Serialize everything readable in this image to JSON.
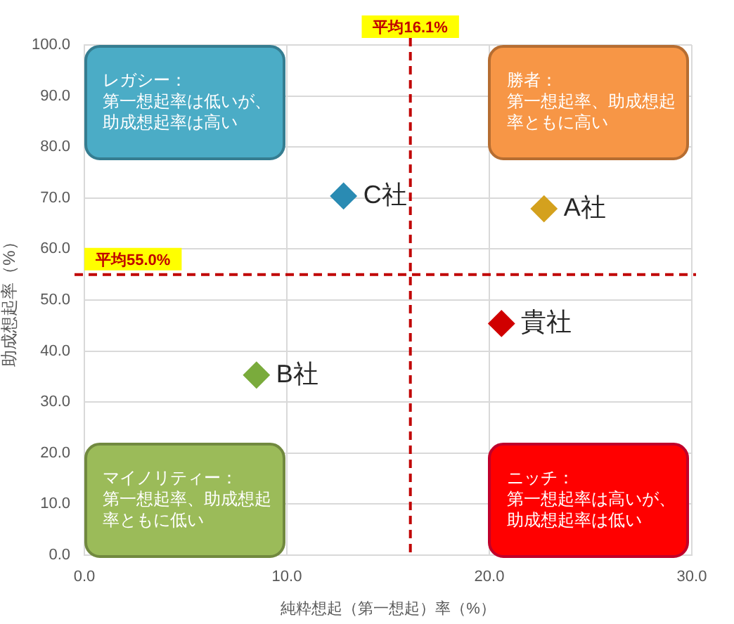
{
  "chart_data": {
    "type": "scatter",
    "xlabel": "純粋想起（第一想起）率（%）",
    "ylabel": "助成想起率（%）",
    "series": [
      {
        "name": "C社",
        "color": "#2a8bb3",
        "x": [
          12.8
        ],
        "values": [
          70.4
        ]
      },
      {
        "name": "A社",
        "color": "#d4a11e",
        "x": [
          22.7
        ],
        "values": [
          67.9
        ]
      },
      {
        "name": "貴社",
        "color": "#d00000",
        "x": [
          20.6
        ],
        "values": [
          45.4
        ]
      },
      {
        "name": "B社",
        "color": "#7aab3c",
        "x": [
          8.5
        ],
        "values": [
          35.3
        ]
      }
    ],
    "xlim": [
      0,
      30
    ],
    "xticks": [
      {
        "value": 0,
        "label": "0.0"
      },
      {
        "value": 10,
        "label": "10.0"
      },
      {
        "value": 20,
        "label": "20.0"
      },
      {
        "value": 30,
        "label": "30.0"
      }
    ],
    "ylim": [
      0,
      100
    ],
    "yticks": [
      {
        "value": 0,
        "label": "0.0"
      },
      {
        "value": 10,
        "label": "10.0"
      },
      {
        "value": 20,
        "label": "20.0"
      },
      {
        "value": 30,
        "label": "30.0"
      },
      {
        "value": 40,
        "label": "40.0"
      },
      {
        "value": 50,
        "label": "50.0"
      },
      {
        "value": 60,
        "label": "60.0"
      },
      {
        "value": 70,
        "label": "70.0"
      },
      {
        "value": 80,
        "label": "80.0"
      },
      {
        "value": 90,
        "label": "90.0"
      },
      {
        "value": 100,
        "label": "100.0"
      }
    ],
    "grid": true,
    "marker": "diamond",
    "ref_lines": [
      {
        "axis": "x",
        "value": 16.1,
        "label": "平均16.1%",
        "color": "#c00000",
        "line_style": "dashed"
      },
      {
        "axis": "y",
        "value": 55.0,
        "label": "平均55.0%",
        "color": "#c00000",
        "line_style": "dashed"
      }
    ],
    "annotations": [
      "レガシー：",
      "第一想起率は低いが、助成想起率は高い",
      "勝者：",
      "第一想起率、助成想起率ともに高い",
      "マイノリティー：",
      "第一想起率、助成想起率ともに低い",
      "ニッチ：",
      "第一想起率は高いが、助成想起率は低い"
    ]
  }
}
